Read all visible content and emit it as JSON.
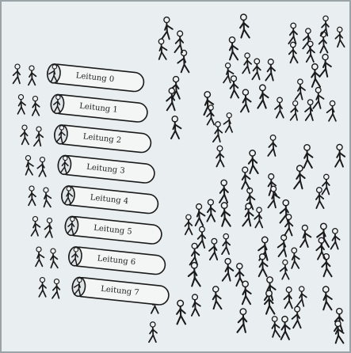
{
  "pipes": [
    {
      "label": "Leitung 0"
    },
    {
      "label": "Leitung 1"
    },
    {
      "label": "Leitung 2"
    },
    {
      "label": "Leitung 3"
    },
    {
      "label": "Leitung 4"
    },
    {
      "label": "Leitung 5"
    },
    {
      "label": "Leitung 6"
    },
    {
      "label": "Leitung 7"
    }
  ]
}
